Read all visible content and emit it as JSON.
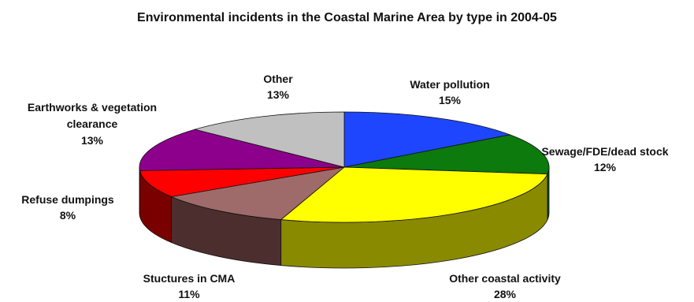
{
  "chart_data": {
    "type": "pie",
    "title": "Environmental incidents in the Coastal Marine Area by type in 2004-05",
    "slices": [
      {
        "label": "Water pollution",
        "value": 15,
        "value_label": "15%",
        "color": "#1f46ff",
        "side_color": "#0a2aa8"
      },
      {
        "label": "Sewage/FDE/dead stock",
        "value": 12,
        "value_label": "12%",
        "color": "#0c7a0c",
        "side_color": "#064d06"
      },
      {
        "label": "Other coastal activity",
        "value": 28,
        "value_label": "28%",
        "color": "#ffff00",
        "side_color": "#8a8a00"
      },
      {
        "label": "Stuctures in CMA",
        "value": 11,
        "value_label": "11%",
        "color": "#9e6a6a",
        "side_color": "#4d2e2e"
      },
      {
        "label": "Refuse dumpings",
        "value": 8,
        "value_label": "8%",
        "color": "#ff0000",
        "side_color": "#7a0000"
      },
      {
        "label": "Earthworks & vegetation clearance",
        "value": 13,
        "value_label": "13%",
        "color": "#8c008c",
        "side_color": "#4a004a"
      },
      {
        "label": "Other",
        "value": 13,
        "value_label": "13%",
        "color": "#c0c0c0",
        "side_color": "#7a7a7a"
      }
    ]
  }
}
